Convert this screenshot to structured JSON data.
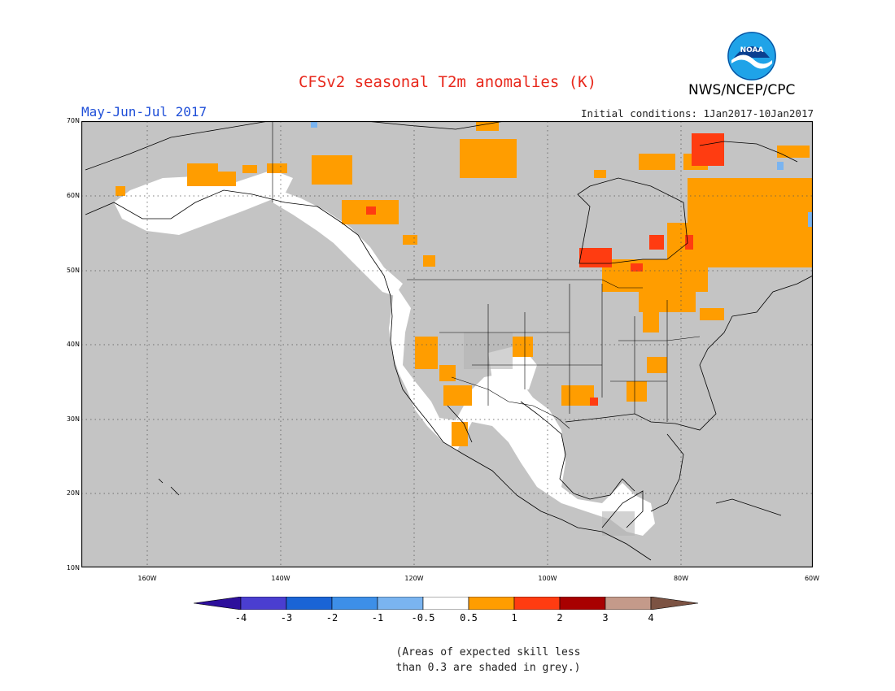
{
  "header": {
    "title": "CFSv2 seasonal T2m anomalies (K)",
    "agency": "NWS/NCEP/CPC",
    "period": "May-Jun-Jul 2017",
    "initial_conditions": "Initial conditions: 1Jan2017-10Jan2017"
  },
  "logo": {
    "text": "NOAA",
    "icon": "noaa-logo-icon"
  },
  "map": {
    "region": "North America",
    "background_color": "#c4c4c4",
    "lat_labels": [
      "70N",
      "60N",
      "50N",
      "40N",
      "30N",
      "20N",
      "10N"
    ],
    "lon_labels": [
      "160W",
      "140W",
      "120W",
      "100W",
      "80W",
      "60W"
    ],
    "grid": "dotted"
  },
  "colorbar": {
    "labels": [
      "-4",
      "-3",
      "-2",
      "-1",
      "-0.5",
      "0.5",
      "1",
      "2",
      "3",
      "4"
    ],
    "colors": [
      "#2d0f9c",
      "#4a3ed0",
      "#1a64d6",
      "#3d8fe8",
      "#7ab4f0",
      "#ffffff",
      "#ff9d00",
      "#ff3c11",
      "#a80000",
      "#c49a8a",
      "#7c5343"
    ]
  },
  "note": {
    "line1": "(Areas of expected skill less",
    "line2": "than 0.3 are shaded in grey.)"
  }
}
